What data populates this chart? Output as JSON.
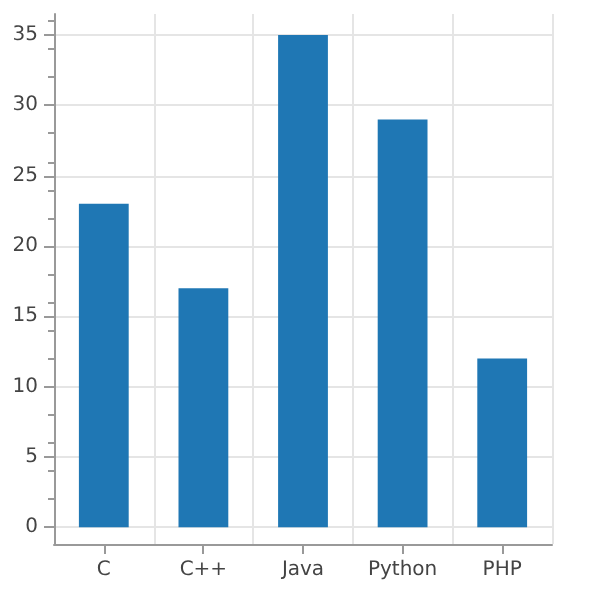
{
  "chart_data": {
    "type": "bar",
    "categories": [
      "C",
      "C++",
      "Java",
      "Python",
      "PHP"
    ],
    "values": [
      23,
      17,
      35,
      29,
      12
    ],
    "color": "#1f77b4",
    "ylim": [
      -1.2,
      36.5
    ],
    "yticks": [
      0,
      5,
      10,
      15,
      20,
      25,
      30,
      35
    ],
    "grid": true
  }
}
